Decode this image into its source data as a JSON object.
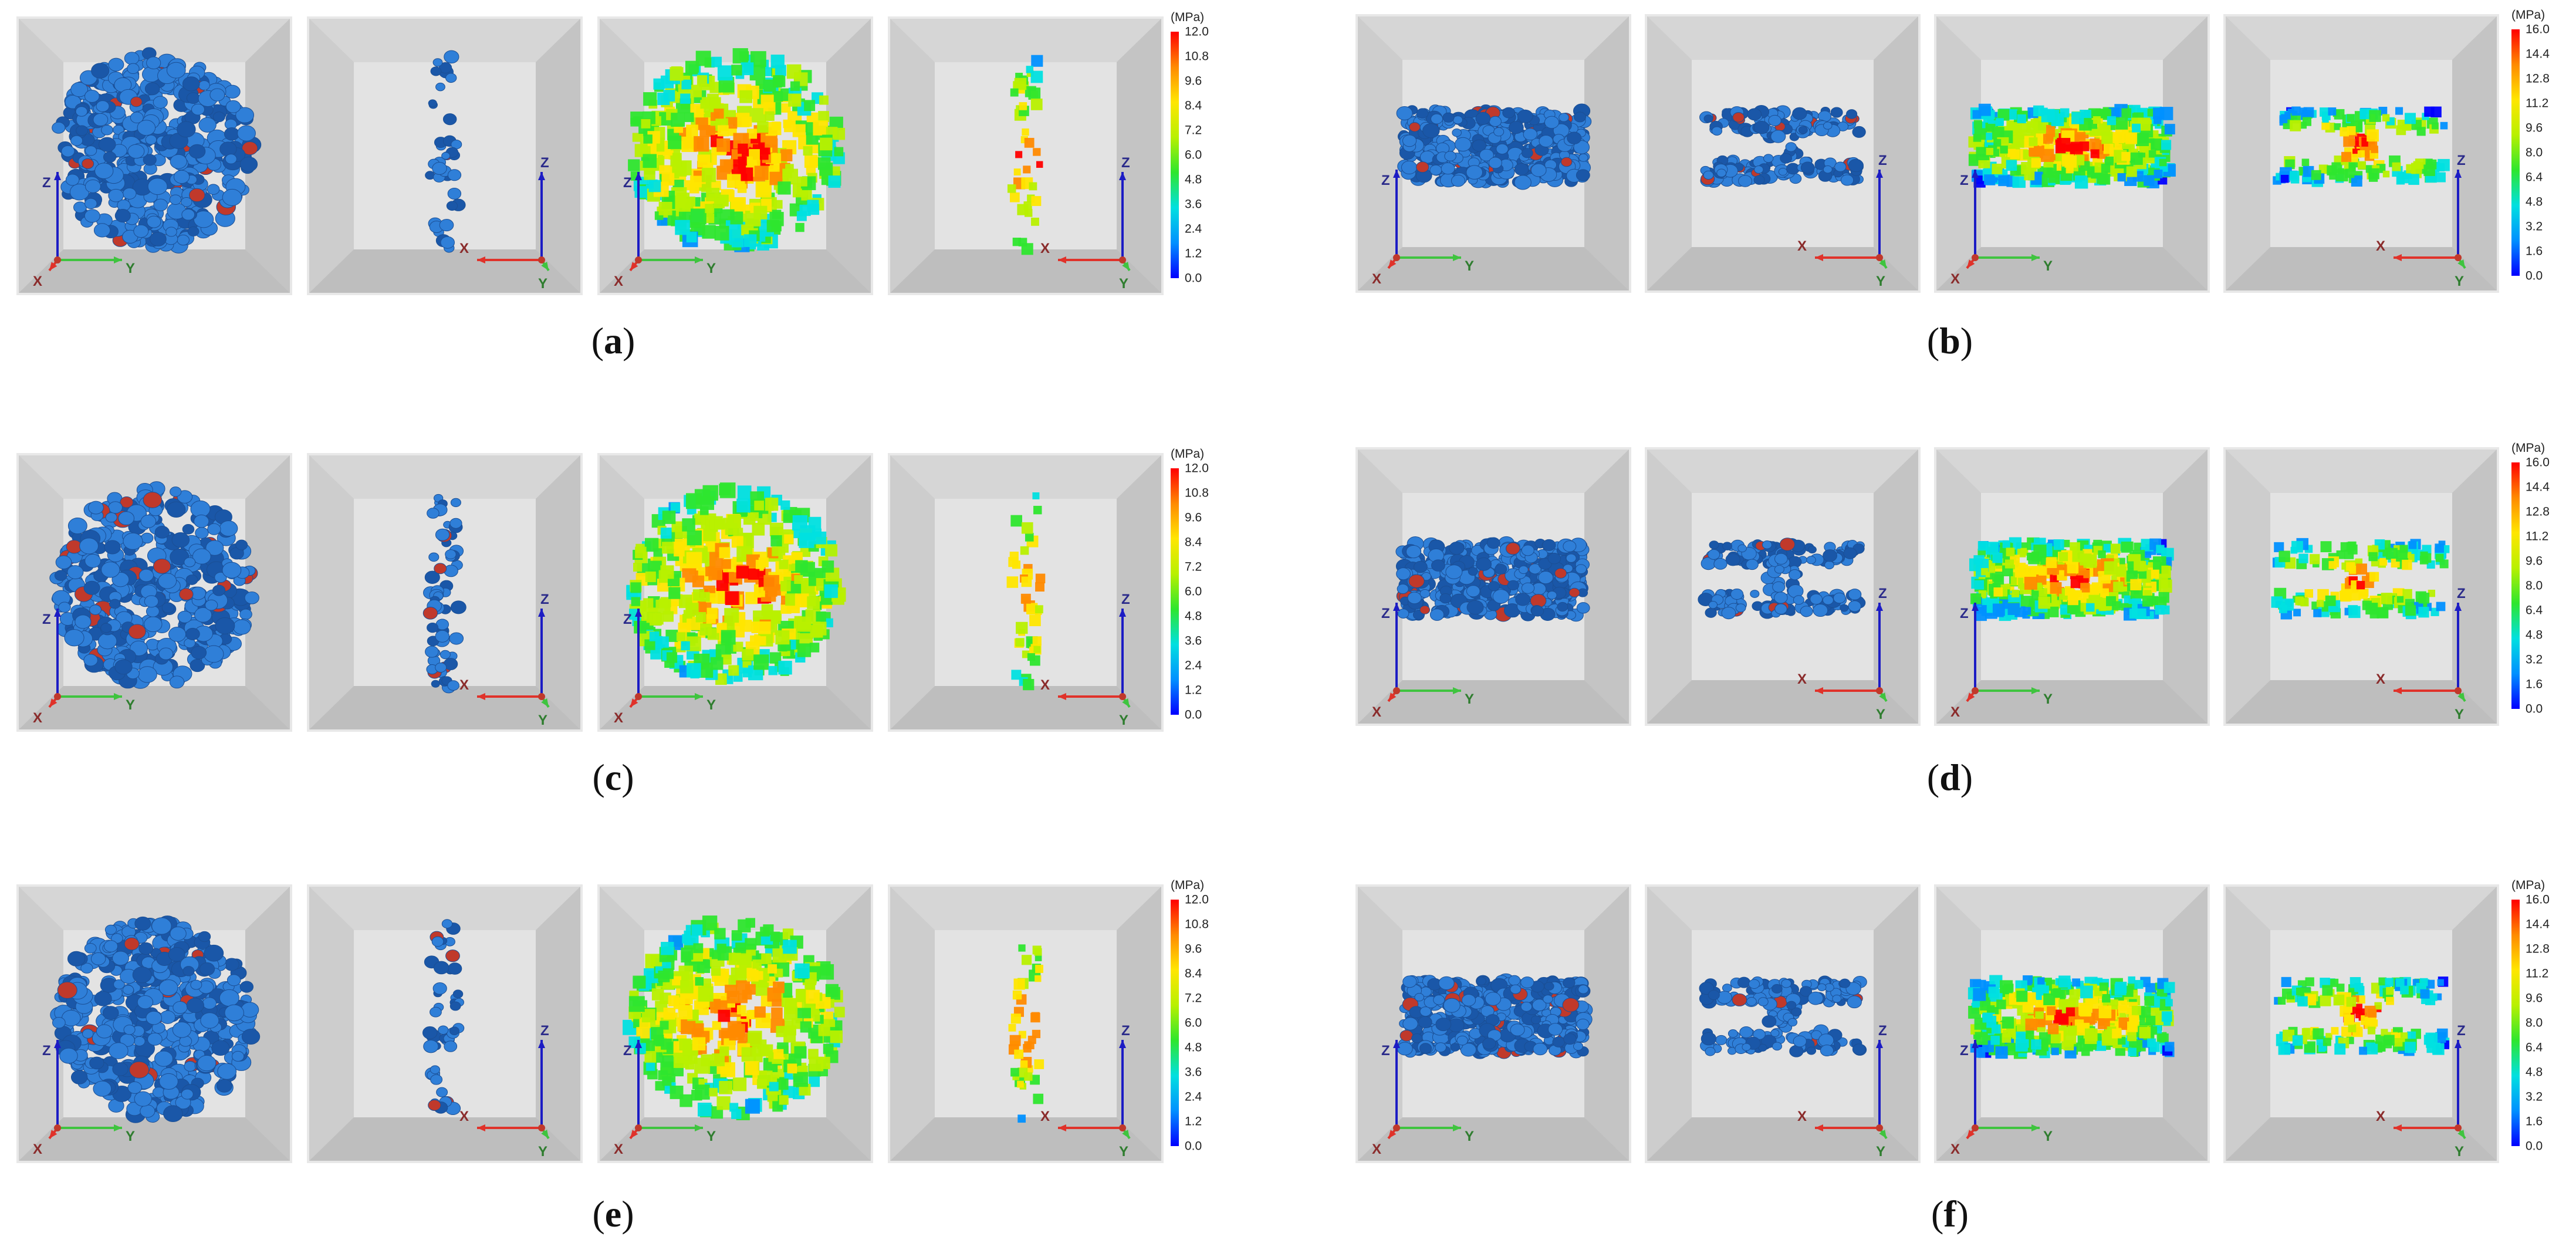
{
  "colors": {
    "blue_particle": "#2f7fd8",
    "dark_blue_particle": "#1a57a8",
    "axis_x": "#e0322a",
    "axis_y": "#3fc43f",
    "axis_z": "#1c1cc4",
    "label_x": "#8a2b2b",
    "label_y": "#2f7d2f",
    "label_z": "#2b2b8a",
    "colormap": [
      "#0000ff",
      "#0090ff",
      "#00e0e0",
      "#2ee62e",
      "#b8f000",
      "#ffe600",
      "#ff8a00",
      "#ff0000"
    ]
  },
  "axis_labels": {
    "x": "X",
    "y": "Y",
    "z": "Z"
  },
  "panels": [
    {
      "id": "a",
      "caption": "a",
      "colorbar": {
        "unit": "(MPa)",
        "ticks": [
          "12.0",
          "10.8",
          "9.6",
          "8.4",
          "7.2",
          "6.0",
          "4.8",
          "3.6",
          "2.4",
          "1.2",
          "0.0"
        ]
      },
      "views": [
        {
          "name": "view-1-xyz-deposit",
          "kind": "blob",
          "style": "blue",
          "axes": "front-yz"
        },
        {
          "name": "view-2-side-deposit",
          "kind": "thin",
          "style": "blue",
          "axes": "side-xz"
        },
        {
          "name": "view-3-xyz-stress",
          "kind": "blob",
          "style": "stress",
          "axes": "front-yz"
        },
        {
          "name": "view-4-side-stress",
          "kind": "thin",
          "style": "stress",
          "axes": "side-xz"
        }
      ]
    },
    {
      "id": "b",
      "caption": "b",
      "colorbar": {
        "unit": "(MPa)",
        "ticks": [
          "16.0",
          "14.4",
          "12.8",
          "11.2",
          "9.6",
          "8.0",
          "6.4",
          "4.8",
          "3.2",
          "1.6",
          "0.0"
        ]
      },
      "views": [
        {
          "name": "view-1-xyz-deposit",
          "kind": "slab",
          "style": "blue",
          "axes": "front-yz"
        },
        {
          "name": "view-2-side-deposit",
          "kind": "hshape",
          "style": "blue",
          "axes": "side-xz"
        },
        {
          "name": "view-3-xyz-stress",
          "kind": "slab",
          "style": "stress",
          "axes": "front-yz"
        },
        {
          "name": "view-4-side-stress",
          "kind": "hshape",
          "style": "stress",
          "axes": "side-xz"
        }
      ]
    },
    {
      "id": "c",
      "caption": "c",
      "colorbar": {
        "unit": "(MPa)",
        "ticks": [
          "12.0",
          "10.8",
          "9.6",
          "8.4",
          "7.2",
          "6.0",
          "4.8",
          "3.6",
          "2.4",
          "1.2",
          "0.0"
        ]
      },
      "views": [
        {
          "name": "view-1-xyz-deposit",
          "kind": "blob",
          "style": "blue",
          "axes": "front-yz"
        },
        {
          "name": "view-2-side-deposit",
          "kind": "thin",
          "style": "blue",
          "axes": "side-xz"
        },
        {
          "name": "view-3-xyz-stress",
          "kind": "blob",
          "style": "stress",
          "axes": "front-yz"
        },
        {
          "name": "view-4-side-stress",
          "kind": "thin",
          "style": "stress",
          "axes": "side-xz"
        }
      ]
    },
    {
      "id": "d",
      "caption": "d",
      "colorbar": {
        "unit": "(MPa)",
        "ticks": [
          "16.0",
          "14.4",
          "12.8",
          "11.2",
          "9.6",
          "8.0",
          "6.4",
          "4.8",
          "3.2",
          "1.6",
          "0.0"
        ]
      },
      "views": [
        {
          "name": "view-1-xyz-deposit",
          "kind": "slab",
          "style": "blue",
          "axes": "front-yz"
        },
        {
          "name": "view-2-side-deposit",
          "kind": "hshape",
          "style": "blue",
          "axes": "side-xz"
        },
        {
          "name": "view-3-xyz-stress",
          "kind": "slab",
          "style": "stress",
          "axes": "front-yz"
        },
        {
          "name": "view-4-side-stress",
          "kind": "hshape",
          "style": "stress",
          "axes": "side-xz"
        }
      ]
    },
    {
      "id": "e",
      "caption": "e",
      "colorbar": {
        "unit": "(MPa)",
        "ticks": [
          "12.0",
          "10.8",
          "9.6",
          "8.4",
          "7.2",
          "6.0",
          "4.8",
          "3.6",
          "2.4",
          "1.2",
          "0.0"
        ]
      },
      "views": [
        {
          "name": "view-1-xyz-deposit",
          "kind": "blob",
          "style": "blue",
          "axes": "front-yz"
        },
        {
          "name": "view-2-side-deposit",
          "kind": "thin",
          "style": "blue",
          "axes": "side-xz"
        },
        {
          "name": "view-3-xyz-stress",
          "kind": "blob",
          "style": "stress",
          "axes": "front-yz"
        },
        {
          "name": "view-4-side-stress",
          "kind": "thin",
          "style": "stress",
          "axes": "side-xz"
        }
      ]
    },
    {
      "id": "f",
      "caption": "f",
      "colorbar": {
        "unit": "(MPa)",
        "ticks": [
          "16.0",
          "14.4",
          "12.8",
          "11.2",
          "9.6",
          "8.0",
          "6.4",
          "4.8",
          "3.2",
          "1.6",
          "0.0"
        ]
      },
      "views": [
        {
          "name": "view-1-xyz-deposit",
          "kind": "slab",
          "style": "blue",
          "axes": "front-yz"
        },
        {
          "name": "view-2-side-deposit",
          "kind": "hshape",
          "style": "blue",
          "axes": "side-xz"
        },
        {
          "name": "view-3-xyz-stress",
          "kind": "slab",
          "style": "stress",
          "axes": "front-yz"
        },
        {
          "name": "view-4-side-stress",
          "kind": "hshape",
          "style": "stress",
          "axes": "side-xz"
        }
      ]
    }
  ]
}
